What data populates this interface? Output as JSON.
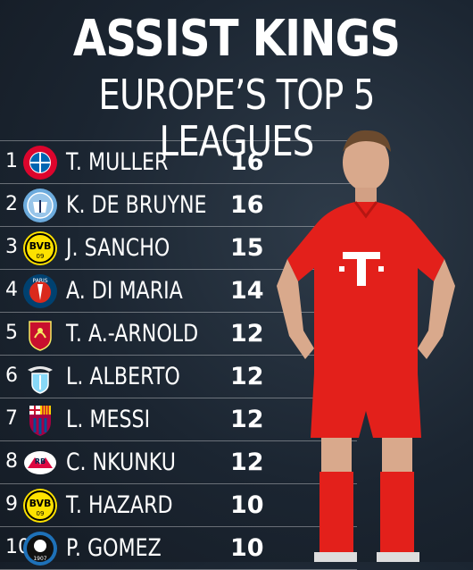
{
  "header": {
    "title": "ASSIST KINGS",
    "subtitle": "EUROPE’S TOP 5 LEAGUES"
  },
  "colors": {
    "background": "#1b2531",
    "kit_red": "#e3201b"
  },
  "rows": [
    {
      "rank": "1",
      "name": "T. MULLER",
      "assists": "16",
      "crest": "bayern-crest",
      "crest_text": "FC BAYERN MÜNCHEN"
    },
    {
      "rank": "2",
      "name": "K. DE BRUYNE",
      "assists": "16",
      "crest": "man-city-crest",
      "crest_text": "MANCHESTER CITY"
    },
    {
      "rank": "3",
      "name": "J. SANCHO",
      "assists": "15",
      "crest": "dortmund-crest",
      "crest_text": "BVB 09"
    },
    {
      "rank": "4",
      "name": "A. DI MARIA",
      "assists": "14",
      "crest": "psg-crest",
      "crest_text": "PARIS"
    },
    {
      "rank": "5",
      "name": "T. A.-ARNOLD",
      "assists": "12",
      "crest": "liverpool-crest",
      "crest_text": ""
    },
    {
      "rank": "6",
      "name": "L. ALBERTO",
      "assists": "12",
      "crest": "lazio-crest",
      "crest_text": ""
    },
    {
      "rank": "7",
      "name": "L. MESSI",
      "assists": "12",
      "crest": "barcelona-crest",
      "crest_text": "FCB"
    },
    {
      "rank": "8",
      "name": "C. NKUNKU",
      "assists": "12",
      "crest": "leipzig-crest",
      "crest_text": "RB"
    },
    {
      "rank": "9",
      "name": "T. HAZARD",
      "assists": "10",
      "crest": "dortmund-crest",
      "crest_text": "BVB 09"
    },
    {
      "rank": "10",
      "name": "P. GOMEZ",
      "assists": "10",
      "crest": "atalanta-crest",
      "crest_text": "1907"
    }
  ],
  "player_image": {
    "icon": "player-photo-icon",
    "shirt_sponsor": "T"
  }
}
